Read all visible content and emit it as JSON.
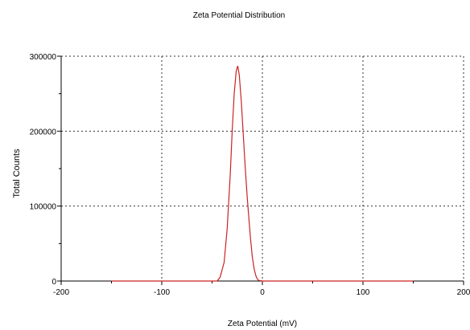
{
  "chart_data": {
    "type": "line",
    "title": "Zeta Potential Distribution",
    "xlabel": "Zeta Potential (mV)",
    "ylabel": "Total Counts",
    "xlim": [
      -200,
      200
    ],
    "ylim": [
      0,
      300000
    ],
    "x_ticks": [
      -200,
      -100,
      0,
      100,
      200
    ],
    "y_ticks": [
      0,
      100000,
      200000,
      300000
    ],
    "x_tick_labels": [
      "-200",
      "-100",
      "0",
      "100",
      "200"
    ],
    "y_tick_labels": [
      "0",
      "100000",
      "200000",
      "300000"
    ],
    "grid": true,
    "legend": "none",
    "series": [
      {
        "color": "#cc2222",
        "x": [
          -150,
          -45,
          -42,
          -38,
          -35,
          -32,
          -30,
          -28,
          -26,
          -24.5,
          -23,
          -21,
          -19,
          -17,
          -15,
          -12,
          -10,
          -8,
          -6,
          -4,
          0,
          150
        ],
        "y": [
          0,
          0,
          5000,
          25000,
          70000,
          140000,
          200000,
          250000,
          280000,
          287000,
          275000,
          240000,
          195000,
          150000,
          110000,
          60000,
          32000,
          15000,
          5000,
          1000,
          0,
          0
        ]
      }
    ]
  }
}
